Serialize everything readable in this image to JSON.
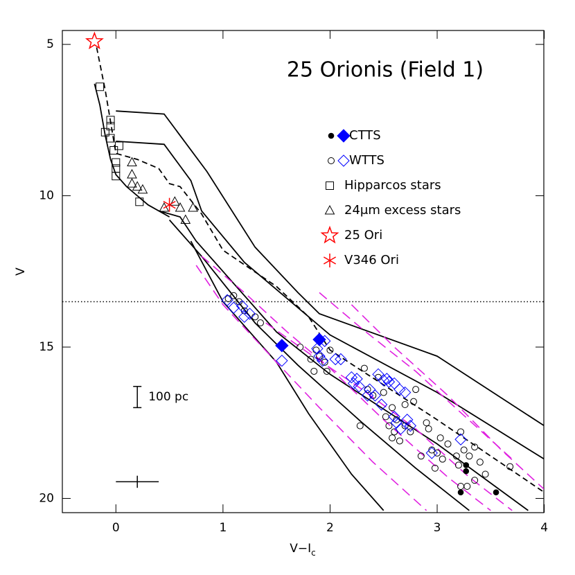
{
  "chart_data": {
    "type": "scatter",
    "title": "25 Orionis (Field 1)",
    "x_label": {
      "main": "V−I",
      "sub": "c"
    },
    "y_label": "V",
    "xlim": [
      -0.5,
      3.996
    ],
    "ylim": [
      4.54,
      20.47
    ],
    "y_inverted": true,
    "xticks": [
      0,
      1,
      2,
      3,
      4
    ],
    "yticks": [
      5,
      10,
      15,
      20
    ],
    "grid": false,
    "hline": {
      "y": 13.5,
      "style": "dotted"
    },
    "lines": [
      {
        "style": "solid",
        "color": "#000000",
        "x": [
          -0.2,
          -0.15,
          -0.1,
          -0.05,
          0.0,
          0.1,
          0.3,
          0.5
        ],
        "y": [
          6.3,
          7.0,
          8.0,
          8.8,
          9.3,
          9.7,
          10.3,
          10.7
        ]
      },
      {
        "style": "solid",
        "color": "#000000",
        "x": [
          0.0,
          0.45,
          0.85,
          1.3,
          1.7,
          1.9,
          3.0,
          4.0
        ],
        "y": [
          7.2,
          7.3,
          9.2,
          11.7,
          13.2,
          13.9,
          15.3,
          17.6
        ]
      },
      {
        "style": "solid",
        "color": "#000000",
        "x": [
          0.0,
          0.45,
          0.7,
          0.8,
          1.2,
          1.6,
          2.0,
          3.0,
          4.0
        ],
        "y": [
          8.2,
          8.3,
          9.5,
          10.5,
          12.2,
          13.4,
          14.6,
          16.5,
          18.7
        ]
      },
      {
        "style": "dashed",
        "color": "#000000",
        "x": [
          -0.18,
          -0.1,
          0.0,
          0.2,
          0.4,
          0.5,
          0.6,
          0.8,
          1.0,
          1.5,
          1.8,
          2.0,
          3.0,
          4.0
        ],
        "y": [
          5.1,
          6.5,
          8.6,
          8.8,
          9.1,
          9.6,
          9.7,
          10.6,
          11.8,
          13.0,
          14.0,
          15.1,
          17.4,
          19.8
        ]
      },
      {
        "style": "solid",
        "color": "#000000",
        "x": [
          0.4,
          0.6,
          0.75,
          1.0,
          1.5,
          2.0,
          3.0,
          3.85
        ],
        "y": [
          10.5,
          10.7,
          11.5,
          12.5,
          14.5,
          15.9,
          18.2,
          20.4
        ]
      },
      {
        "style": "solid",
        "color": "#000000",
        "x": [
          0.5,
          0.8,
          1.3,
          1.7,
          2.3,
          2.8,
          3.3
        ],
        "y": [
          10.8,
          12.0,
          14.2,
          15.6,
          17.5,
          19.0,
          20.4
        ]
      },
      {
        "style": "solid",
        "color": "#000000",
        "x": [
          0.7,
          1.0,
          1.5,
          1.8,
          2.2,
          2.5
        ],
        "y": [
          11.5,
          13.5,
          15.5,
          17.2,
          19.2,
          20.4
        ]
      },
      {
        "style": "dashed",
        "color": "#e020e0",
        "x": [
          0.75,
          1.0,
          1.5,
          1.9,
          2.4,
          2.9
        ],
        "y": [
          12.3,
          13.6,
          15.5,
          17.0,
          18.8,
          20.4
        ]
      },
      {
        "style": "dashed",
        "color": "#e020e0",
        "x": [
          0.8,
          1.2,
          1.6,
          2.0,
          2.5,
          3.1,
          3.5
        ],
        "y": [
          12.0,
          13.2,
          14.5,
          15.7,
          17.4,
          19.3,
          20.4
        ]
      },
      {
        "style": "dashed",
        "color": "#e020e0",
        "x": [
          1.9,
          2.3,
          2.8,
          3.2,
          3.7
        ],
        "y": [
          13.2,
          14.4,
          15.8,
          17.1,
          18.7
        ]
      },
      {
        "style": "dashed",
        "color": "#e020e0",
        "x": [
          2.2,
          2.6,
          3.1,
          3.6,
          4.0
        ],
        "y": [
          13.6,
          15.0,
          16.6,
          18.4,
          19.7
        ]
      },
      {
        "style": "dashed",
        "color": "#e020e0",
        "x": [
          1.4,
          1.8,
          2.3,
          2.8,
          3.3,
          3.7
        ],
        "y": [
          14.2,
          15.2,
          16.4,
          17.7,
          19.3,
          20.4
        ]
      }
    ],
    "series": [
      {
        "name": "CTTS",
        "groups": [
          {
            "marker": "filled-circle",
            "color": "#000000",
            "x": [
              3.27,
              3.27,
              3.22,
              3.55
            ],
            "y": [
              18.9,
              19.1,
              19.8,
              19.8
            ]
          },
          {
            "marker": "filled-diamond",
            "color": "#0000ff",
            "x": [
              1.55,
              1.9
            ],
            "y": [
              14.95,
              14.75
            ]
          }
        ]
      },
      {
        "name": "WTTS",
        "groups": [
          {
            "marker": "circle",
            "color": "#000000",
            "x": [
              1.1,
              1.15,
              1.2,
              1.3,
              1.35,
              1.05,
              1.72,
              1.82,
              1.87,
              1.9,
              1.95,
              1.97,
              2.0,
              1.85,
              2.32,
              2.35,
              2.4,
              2.45,
              2.5,
              2.52,
              2.55,
              2.58,
              2.6,
              2.62,
              2.65,
              2.7,
              2.75,
              2.7,
              2.78,
              2.8,
              2.58,
              2.9,
              2.92,
              2.95,
              3.0,
              3.03,
              3.05,
              3.1,
              3.18,
              3.2,
              3.22,
              3.25,
              3.3,
              3.35,
              3.28,
              3.35,
              3.4,
              3.45,
              3.68,
              2.85,
              2.28,
              2.98,
              3.22
            ],
            "y": [
              13.3,
              13.5,
              13.8,
              14.0,
              14.2,
              13.4,
              15.0,
              15.4,
              15.1,
              15.3,
              15.5,
              15.8,
              15.1,
              15.8,
              15.7,
              16.4,
              16.6,
              16.0,
              16.5,
              17.3,
              17.6,
              17.0,
              17.8,
              17.4,
              18.1,
              17.6,
              17.8,
              16.9,
              16.8,
              16.4,
              18.0,
              17.5,
              17.7,
              18.4,
              18.5,
              18.0,
              18.7,
              18.2,
              18.6,
              18.9,
              17.8,
              18.4,
              18.6,
              18.3,
              19.6,
              19.4,
              18.8,
              19.2,
              18.95,
              18.6,
              17.6,
              19.0,
              19.6
            ]
          },
          {
            "marker": "diamond",
            "color": "#0000ff",
            "x": [
              1.04,
              1.1,
              1.18,
              1.2,
              1.25,
              1.88,
              1.9,
              1.93,
              1.95,
              2.05,
              2.1,
              2.2,
              2.22,
              2.27,
              2.35,
              2.37,
              2.42,
              2.45,
              2.5,
              2.53,
              2.6,
              2.65,
              2.7,
              2.48,
              2.6,
              2.62,
              2.66,
              2.72,
              2.75,
              2.95,
              3.22,
              1.55,
              2.25,
              2.55
            ],
            "y": [
              13.45,
              13.7,
              13.65,
              14.0,
              13.9,
              15.05,
              15.3,
              15.45,
              14.8,
              15.4,
              15.4,
              16.0,
              16.2,
              16.3,
              16.6,
              16.4,
              16.6,
              15.9,
              16.1,
              16.05,
              16.2,
              16.4,
              16.5,
              16.9,
              17.3,
              17.5,
              17.7,
              17.4,
              17.6,
              18.5,
              18.05,
              15.45,
              16.05,
              16.15
            ]
          }
        ]
      },
      {
        "name": "Hipparcos stars",
        "groups": [
          {
            "marker": "square",
            "color": "#000000",
            "x": [
              -0.15,
              -0.1,
              -0.05,
              -0.05,
              -0.05,
              -0.02,
              0.0,
              0.0,
              0.0,
              0.03,
              0.22
            ],
            "y": [
              6.4,
              7.9,
              7.5,
              7.7,
              8.1,
              8.5,
              8.9,
              9.1,
              9.35,
              8.35,
              10.2
            ]
          }
        ]
      },
      {
        "name": "24μm excess stars",
        "groups": [
          {
            "marker": "triangle",
            "color": "#000000",
            "x": [
              0.15,
              0.15,
              0.15,
              0.2,
              0.25,
              0.45,
              0.55,
              0.6,
              0.65,
              0.72
            ],
            "y": [
              8.9,
              9.3,
              9.6,
              9.7,
              9.8,
              10.4,
              10.2,
              10.4,
              10.8,
              10.4
            ]
          }
        ]
      },
      {
        "name": "25 Ori",
        "groups": [
          {
            "marker": "star",
            "color": "#ff0000",
            "x": [
              -0.2
            ],
            "y": [
              4.9
            ]
          }
        ]
      },
      {
        "name": "V346 Ori",
        "groups": [
          {
            "marker": "asterisk",
            "color": "#ff0000",
            "x": [
              0.5
            ],
            "y": [
              10.3
            ]
          }
        ]
      }
    ],
    "distance_bar": {
      "x": 0.2,
      "y": [
        16.3,
        17.0
      ],
      "label": "100 pc"
    },
    "error_cross": {
      "x": 0.2,
      "y": 19.45,
      "xerr": 0.2,
      "yerr": 0.2
    }
  }
}
